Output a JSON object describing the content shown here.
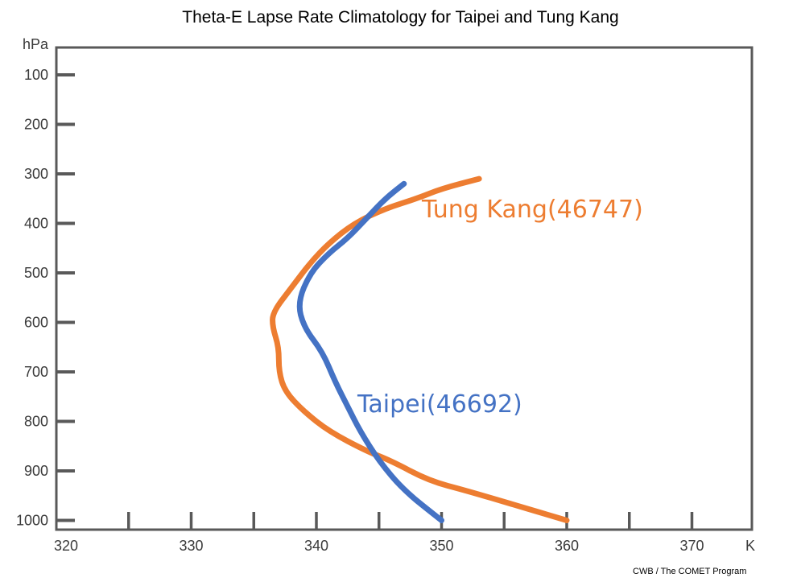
{
  "chart_data": {
    "type": "line",
    "title": "Theta-E Lapse Rate Climatology for Taipei and Tung Kang",
    "xlabel": "K",
    "ylabel": "hPa",
    "xlim": [
      320,
      375
    ],
    "ylim": [
      1000,
      100
    ],
    "x_ticks": [
      "320",
      "330",
      "340",
      "350",
      "360",
      "370"
    ],
    "y_ticks": [
      "100",
      "200",
      "300",
      "400",
      "500",
      "600",
      "700",
      "800",
      "900",
      "1000"
    ],
    "grid": false,
    "legend": "inline labels",
    "series": [
      {
        "name": "Tung Kang(46747)",
        "color": "#ed7d31",
        "points": [
          [
            360,
            1000
          ],
          [
            356,
            970
          ],
          [
            352,
            940
          ],
          [
            349,
            920
          ],
          [
            346,
            880
          ],
          [
            344,
            860
          ],
          [
            341,
            820
          ],
          [
            339,
            780
          ],
          [
            337.5,
            740
          ],
          [
            337,
            700
          ],
          [
            337,
            650
          ],
          [
            336.5,
            610
          ],
          [
            336.5,
            580
          ],
          [
            338,
            530
          ],
          [
            339.5,
            480
          ],
          [
            341,
            440
          ],
          [
            343,
            400
          ],
          [
            345.5,
            370
          ],
          [
            348,
            350
          ],
          [
            350,
            330
          ],
          [
            353,
            310
          ]
        ]
      },
      {
        "name": "Taipei(46692)",
        "color": "#4472c4",
        "points": [
          [
            350,
            1000
          ],
          [
            347,
            940
          ],
          [
            345,
            880
          ],
          [
            343.5,
            820
          ],
          [
            342.5,
            770
          ],
          [
            341.5,
            720
          ],
          [
            340.5,
            660
          ],
          [
            339,
            610
          ],
          [
            338.5,
            560
          ],
          [
            339.5,
            500
          ],
          [
            341,
            460
          ],
          [
            342.5,
            430
          ],
          [
            344,
            390
          ],
          [
            345.5,
            350
          ],
          [
            347,
            320
          ]
        ]
      }
    ]
  },
  "credit": "CWB / The COMET Program"
}
